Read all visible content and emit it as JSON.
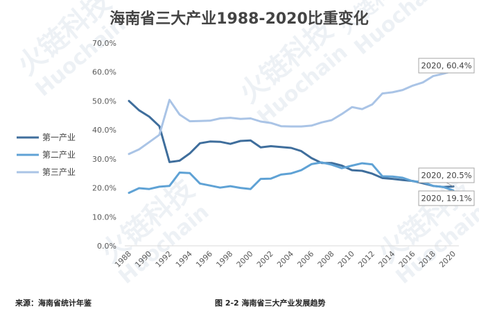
{
  "chart_data": {
    "type": "line",
    "title": "海南省三大产业1988-2020比重变化",
    "x": [
      1988,
      1989,
      1990,
      1991,
      1992,
      1993,
      1994,
      1995,
      1996,
      1997,
      1998,
      1999,
      2000,
      2001,
      2002,
      2003,
      2004,
      2005,
      2006,
      2007,
      2008,
      2009,
      2010,
      2011,
      2012,
      2013,
      2014,
      2015,
      2016,
      2017,
      2018,
      2019,
      2020
    ],
    "x_tick_labels": [
      "1988",
      "1990",
      "1992",
      "1994",
      "1996",
      "1998",
      "2000",
      "2002",
      "2004",
      "2006",
      "2008",
      "2010",
      "2012",
      "2014",
      "2016",
      "2018",
      "2020"
    ],
    "y_tick_labels": [
      "0.0%",
      "10.0%",
      "20.0%",
      "30.0%",
      "40.0%",
      "50.0%",
      "60.0%",
      "70.0%"
    ],
    "ylim": [
      0,
      70
    ],
    "y_unit": "%",
    "grid": false,
    "legend_position": "left",
    "series": [
      {
        "name": "第一产业",
        "color": "#3f6e9c",
        "values": [
          50.0,
          46.8,
          44.6,
          41.3,
          28.9,
          29.4,
          31.9,
          35.4,
          36.0,
          35.9,
          35.2,
          36.2,
          36.4,
          34.0,
          34.4,
          34.1,
          33.8,
          32.7,
          30.3,
          28.6,
          28.6,
          27.7,
          26.1,
          25.9,
          24.9,
          23.4,
          23.1,
          22.7,
          22.4,
          21.6,
          20.7,
          20.3,
          20.5
        ]
      },
      {
        "name": "第二产业",
        "color": "#5fa2d5",
        "values": [
          18.3,
          19.9,
          19.6,
          20.4,
          20.7,
          25.3,
          25.1,
          21.5,
          20.8,
          20.1,
          20.6,
          20.0,
          19.6,
          23.1,
          23.2,
          24.6,
          25.0,
          26.1,
          28.2,
          28.8,
          28.0,
          26.8,
          27.7,
          28.5,
          28.1,
          24.0,
          23.9,
          23.5,
          22.3,
          22.0,
          20.7,
          20.3,
          19.1
        ]
      },
      {
        "name": "第三产业",
        "color": "#aac4e6",
        "values": [
          31.7,
          33.3,
          35.8,
          38.3,
          50.4,
          45.3,
          43.0,
          43.1,
          43.2,
          44.0,
          44.2,
          43.8,
          44.0,
          42.9,
          42.4,
          41.3,
          41.2,
          41.2,
          41.5,
          42.6,
          43.4,
          45.5,
          47.9,
          47.2,
          48.8,
          52.6,
          53.0,
          53.8,
          55.3,
          56.4,
          58.6,
          59.4,
          60.4
        ]
      }
    ],
    "annotations": [
      {
        "series": 2,
        "year": 2020,
        "text": "2020, 60.4%"
      },
      {
        "series": 0,
        "year": 2020,
        "text": "2020, 20.5%"
      },
      {
        "series": 1,
        "year": 2020,
        "text": "2020, 19.1%"
      }
    ]
  },
  "footer": {
    "source": "来源：海南省统计年鉴",
    "caption": "图 2-2  海南省三大产业发展趋势"
  },
  "watermark": {
    "brand_cn": "火链科技",
    "brand_en": "Huochain"
  }
}
